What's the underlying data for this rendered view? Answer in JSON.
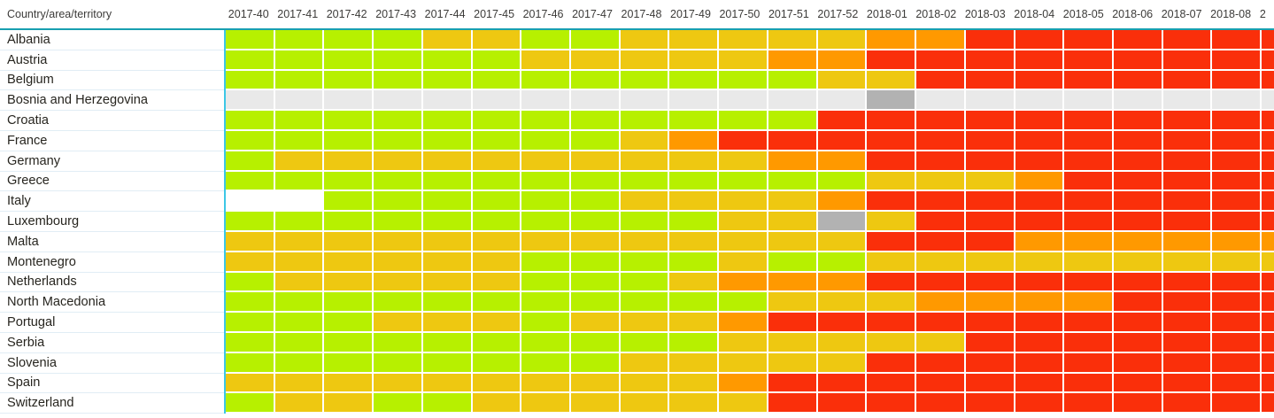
{
  "header": {
    "row_dimension_label": "Country/area/territory",
    "week_columns": [
      "2017-40",
      "2017-41",
      "2017-42",
      "2017-43",
      "2017-44",
      "2017-45",
      "2017-46",
      "2017-47",
      "2017-48",
      "2017-49",
      "2017-50",
      "2017-51",
      "2017-52",
      "2018-01",
      "2018-02",
      "2018-03",
      "2018-04",
      "2018-05",
      "2018-06",
      "2018-07",
      "2018-08"
    ],
    "partial_column_label": "2"
  },
  "accent_colors": {
    "header_underline": "#189fb0",
    "data_area_left_border": "#3cc7e6",
    "row_separator": "#e1edf5",
    "gridline": "#ffffff"
  },
  "chart_data": {
    "type": "heatmap",
    "title": "",
    "xlabel": "",
    "ylabel": "Country/area/territory",
    "x": [
      "2017-40",
      "2017-41",
      "2017-42",
      "2017-43",
      "2017-44",
      "2017-45",
      "2017-46",
      "2017-47",
      "2017-48",
      "2017-49",
      "2017-50",
      "2017-51",
      "2017-52",
      "2018-01",
      "2018-02",
      "2018-03",
      "2018-04",
      "2018-05",
      "2018-06",
      "2018-07",
      "2018-08"
    ],
    "x_partial_column": "2",
    "palette": {
      "G": "#b7f000",
      "Y": "#eec811",
      "O": "#ff9900",
      "R": "#fa2f0a",
      "W": "#ffffff",
      "L": "#e9e9e9",
      "D": "#b2b2b2"
    },
    "palette_names": {
      "G": "green",
      "Y": "yellow",
      "O": "orange",
      "R": "red",
      "W": "white",
      "L": "light-gray",
      "D": "dark-gray"
    },
    "rows": [
      {
        "name": "Albania",
        "cells": [
          "G",
          "G",
          "G",
          "G",
          "Y",
          "Y",
          "G",
          "G",
          "Y",
          "Y",
          "Y",
          "Y",
          "Y",
          "O",
          "O",
          "R",
          "R",
          "R",
          "R",
          "R",
          "R"
        ],
        "partial_cell": "R"
      },
      {
        "name": "Austria",
        "cells": [
          "G",
          "G",
          "G",
          "G",
          "G",
          "G",
          "Y",
          "Y",
          "Y",
          "Y",
          "Y",
          "O",
          "O",
          "R",
          "R",
          "R",
          "R",
          "R",
          "R",
          "R",
          "R"
        ],
        "partial_cell": "R"
      },
      {
        "name": "Belgium",
        "cells": [
          "G",
          "G",
          "G",
          "G",
          "G",
          "G",
          "G",
          "G",
          "G",
          "G",
          "G",
          "G",
          "Y",
          "Y",
          "R",
          "R",
          "R",
          "R",
          "R",
          "R",
          "R"
        ],
        "partial_cell": "R"
      },
      {
        "name": "Bosnia and Herzegovina",
        "cells": [
          "L",
          "L",
          "L",
          "L",
          "L",
          "L",
          "L",
          "L",
          "L",
          "L",
          "L",
          "L",
          "L",
          "D",
          "L",
          "L",
          "L",
          "L",
          "L",
          "L",
          "L"
        ],
        "partial_cell": "L"
      },
      {
        "name": "Croatia",
        "cells": [
          "G",
          "G",
          "G",
          "G",
          "G",
          "G",
          "G",
          "G",
          "G",
          "G",
          "G",
          "G",
          "R",
          "R",
          "R",
          "R",
          "R",
          "R",
          "R",
          "R",
          "R"
        ],
        "partial_cell": "R"
      },
      {
        "name": "France",
        "cells": [
          "G",
          "G",
          "G",
          "G",
          "G",
          "G",
          "G",
          "G",
          "Y",
          "O",
          "R",
          "R",
          "R",
          "R",
          "R",
          "R",
          "R",
          "R",
          "R",
          "R",
          "R"
        ],
        "partial_cell": "R"
      },
      {
        "name": "Germany",
        "cells": [
          "G",
          "Y",
          "Y",
          "Y",
          "Y",
          "Y",
          "Y",
          "Y",
          "Y",
          "Y",
          "Y",
          "O",
          "O",
          "R",
          "R",
          "R",
          "R",
          "R",
          "R",
          "R",
          "R"
        ],
        "partial_cell": "R"
      },
      {
        "name": "Greece",
        "cells": [
          "G",
          "G",
          "G",
          "G",
          "G",
          "G",
          "G",
          "G",
          "G",
          "G",
          "G",
          "G",
          "G",
          "Y",
          "Y",
          "Y",
          "O",
          "R",
          "R",
          "R",
          "R"
        ],
        "partial_cell": "R"
      },
      {
        "name": "Italy",
        "cells": [
          "W",
          "W",
          "G",
          "G",
          "G",
          "G",
          "G",
          "G",
          "Y",
          "Y",
          "Y",
          "Y",
          "O",
          "R",
          "R",
          "R",
          "R",
          "R",
          "R",
          "R",
          "R"
        ],
        "partial_cell": "R"
      },
      {
        "name": "Luxembourg",
        "cells": [
          "G",
          "G",
          "G",
          "G",
          "G",
          "G",
          "G",
          "G",
          "G",
          "G",
          "Y",
          "Y",
          "D",
          "Y",
          "R",
          "R",
          "R",
          "R",
          "R",
          "R",
          "R"
        ],
        "partial_cell": "R"
      },
      {
        "name": "Malta",
        "cells": [
          "Y",
          "Y",
          "Y",
          "Y",
          "Y",
          "Y",
          "Y",
          "Y",
          "Y",
          "Y",
          "Y",
          "Y",
          "Y",
          "R",
          "R",
          "R",
          "O",
          "O",
          "O",
          "O",
          "O"
        ],
        "partial_cell": "O"
      },
      {
        "name": "Montenegro",
        "cells": [
          "Y",
          "Y",
          "Y",
          "Y",
          "Y",
          "Y",
          "G",
          "G",
          "G",
          "G",
          "Y",
          "G",
          "G",
          "Y",
          "Y",
          "Y",
          "Y",
          "Y",
          "Y",
          "Y",
          "Y"
        ],
        "partial_cell": "Y"
      },
      {
        "name": "Netherlands",
        "cells": [
          "G",
          "Y",
          "Y",
          "Y",
          "Y",
          "Y",
          "G",
          "G",
          "G",
          "Y",
          "O",
          "O",
          "O",
          "R",
          "R",
          "R",
          "R",
          "R",
          "R",
          "R",
          "R"
        ],
        "partial_cell": "R"
      },
      {
        "name": "North Macedonia",
        "cells": [
          "G",
          "G",
          "G",
          "G",
          "G",
          "G",
          "G",
          "G",
          "G",
          "G",
          "G",
          "Y",
          "Y",
          "Y",
          "O",
          "O",
          "O",
          "O",
          "R",
          "R",
          "R"
        ],
        "partial_cell": "R"
      },
      {
        "name": "Portugal",
        "cells": [
          "G",
          "G",
          "G",
          "Y",
          "Y",
          "Y",
          "G",
          "Y",
          "Y",
          "Y",
          "O",
          "R",
          "R",
          "R",
          "R",
          "R",
          "R",
          "R",
          "R",
          "R",
          "R"
        ],
        "partial_cell": "R"
      },
      {
        "name": "Serbia",
        "cells": [
          "G",
          "G",
          "G",
          "G",
          "G",
          "G",
          "G",
          "G",
          "G",
          "G",
          "Y",
          "Y",
          "Y",
          "Y",
          "Y",
          "R",
          "R",
          "R",
          "R",
          "R",
          "R"
        ],
        "partial_cell": "R"
      },
      {
        "name": "Slovenia",
        "cells": [
          "G",
          "G",
          "G",
          "G",
          "G",
          "G",
          "G",
          "G",
          "Y",
          "Y",
          "Y",
          "Y",
          "Y",
          "R",
          "R",
          "R",
          "R",
          "R",
          "R",
          "R",
          "R"
        ],
        "partial_cell": "R"
      },
      {
        "name": "Spain",
        "cells": [
          "Y",
          "Y",
          "Y",
          "Y",
          "Y",
          "Y",
          "Y",
          "Y",
          "Y",
          "Y",
          "O",
          "R",
          "R",
          "R",
          "R",
          "R",
          "R",
          "R",
          "R",
          "R",
          "R"
        ],
        "partial_cell": "R"
      },
      {
        "name": "Switzerland",
        "cells": [
          "G",
          "Y",
          "Y",
          "G",
          "G",
          "Y",
          "Y",
          "Y",
          "Y",
          "Y",
          "Y",
          "R",
          "R",
          "R",
          "R",
          "R",
          "R",
          "R",
          "R",
          "R",
          "R"
        ],
        "partial_cell": "R"
      }
    ]
  }
}
